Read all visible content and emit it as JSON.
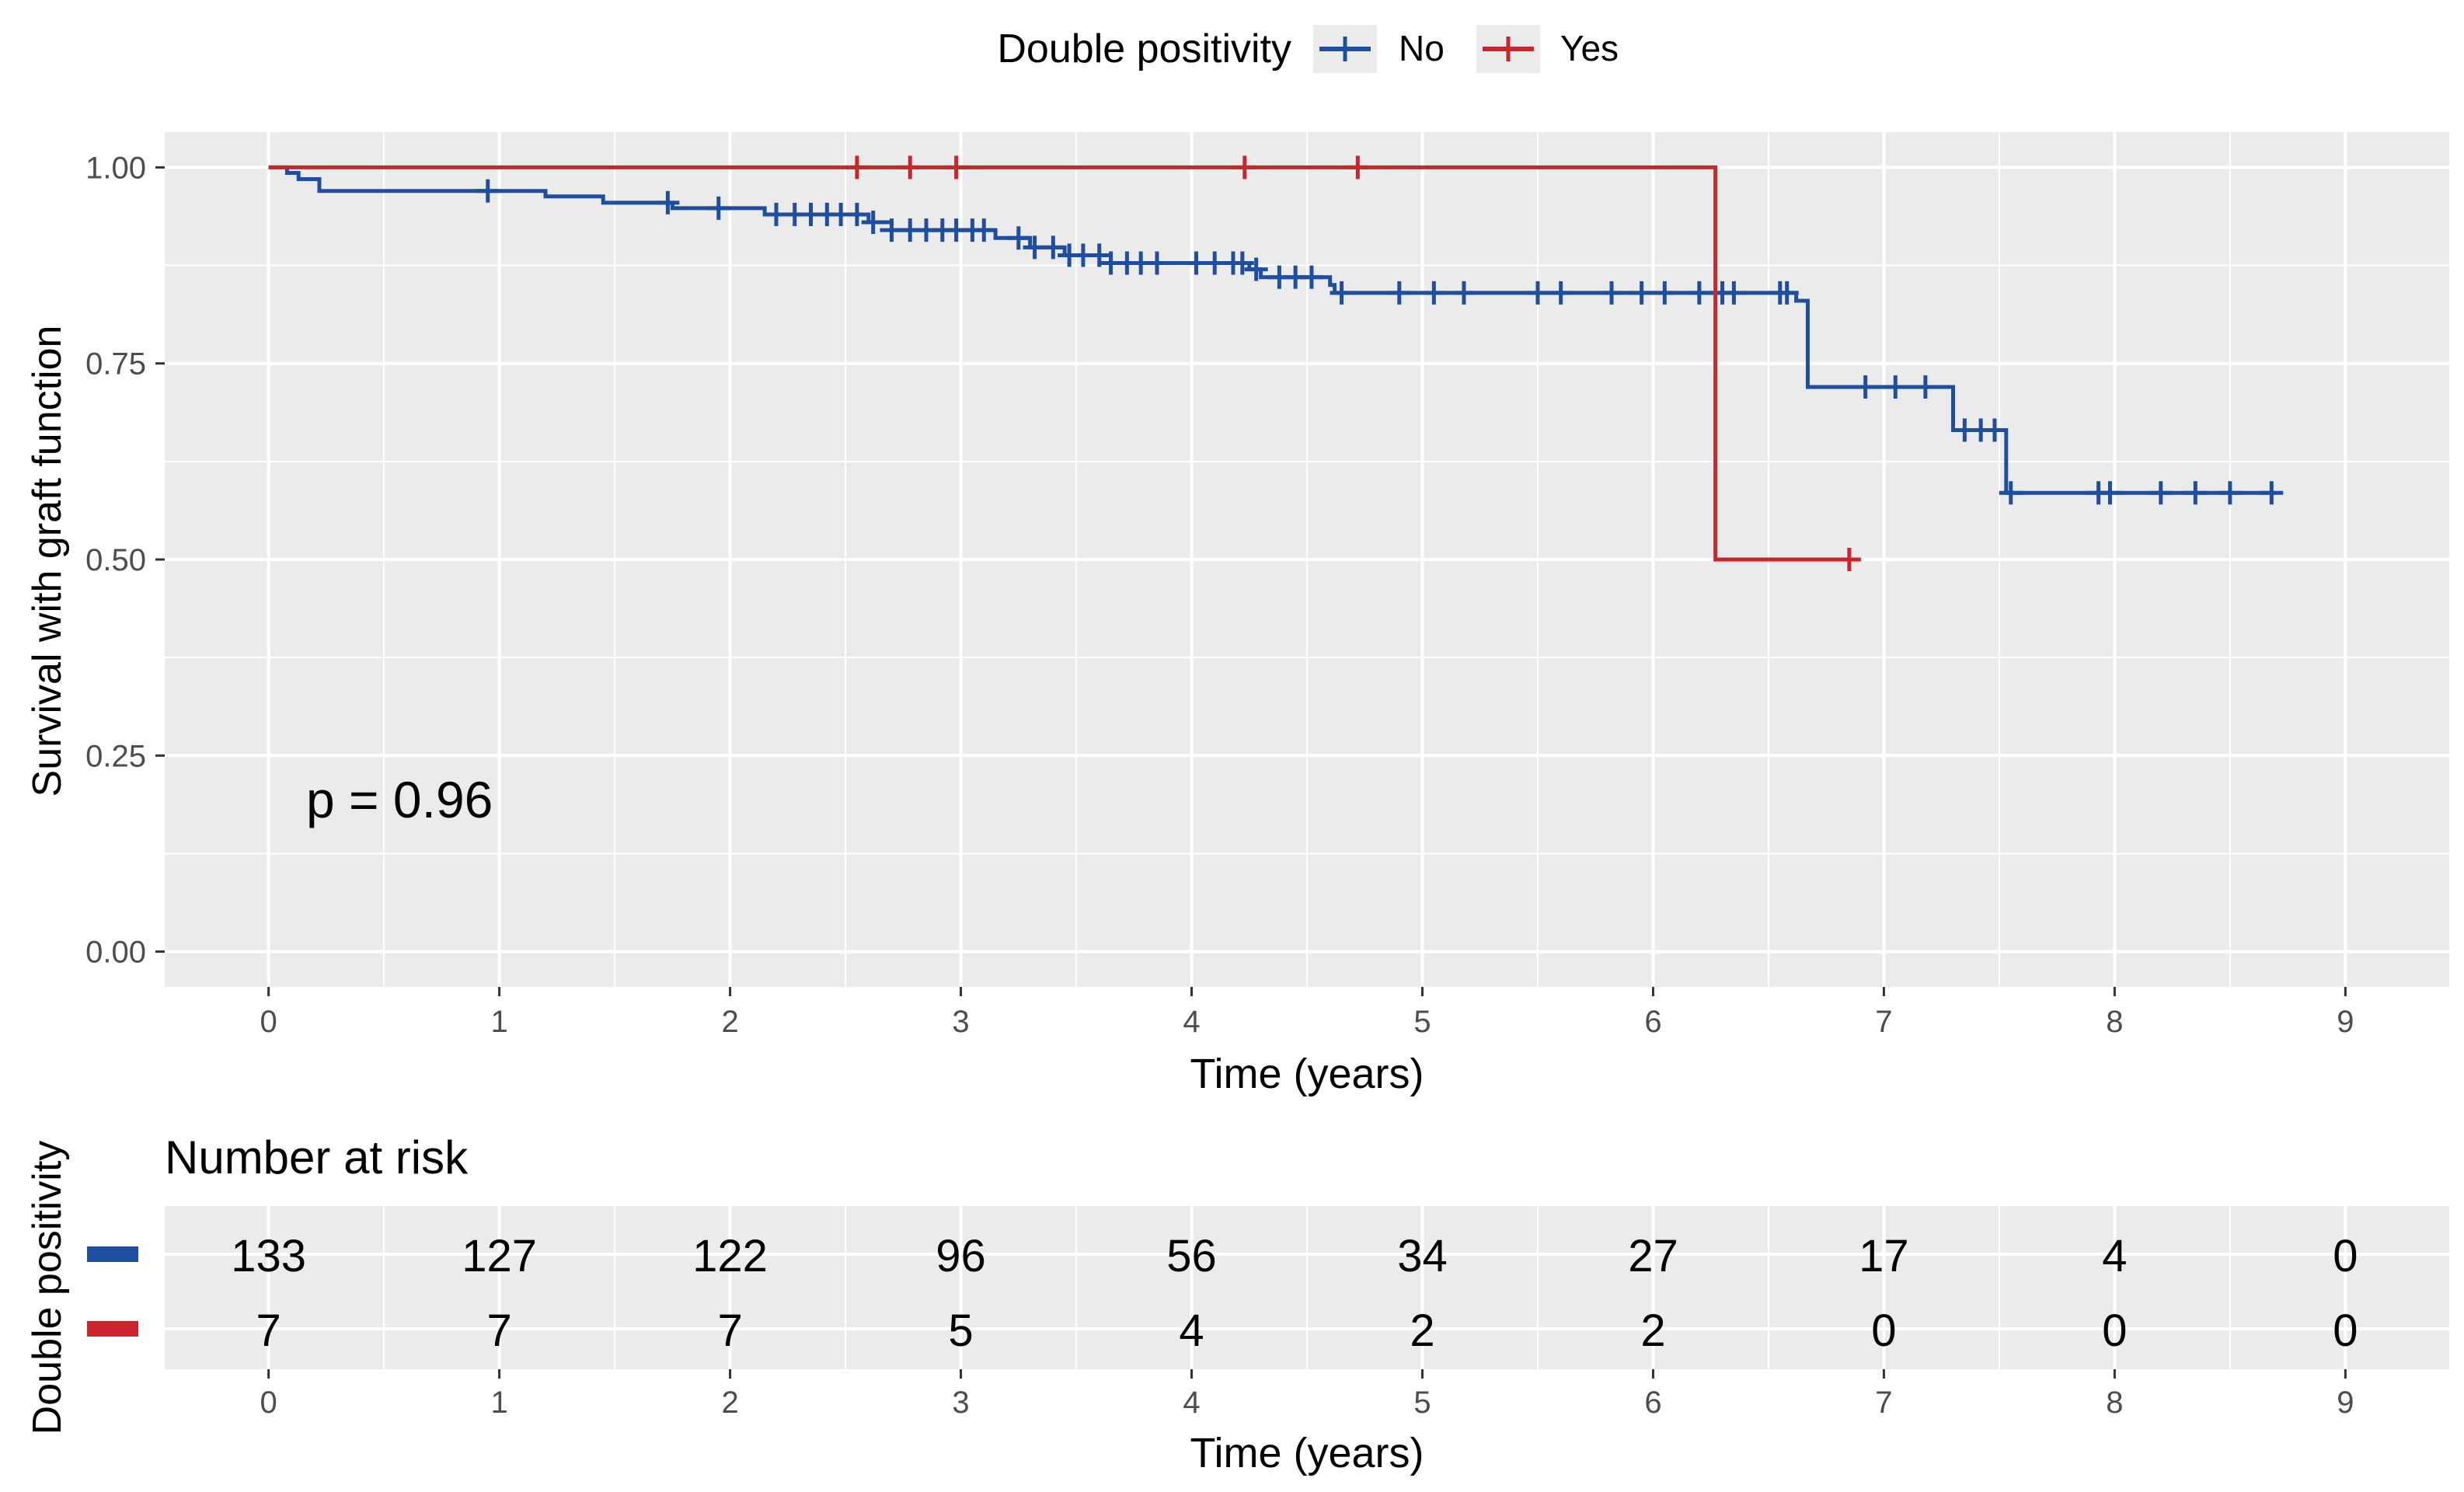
{
  "legend": {
    "title": "Double positivity",
    "items": [
      {
        "label": "No",
        "color": "#1F4E9E"
      },
      {
        "label": "Yes",
        "color": "#C9252C"
      }
    ]
  },
  "chart_data": [
    {
      "type": "line",
      "subtype": "kaplan-meier",
      "ylabel": "Survival with graft function",
      "xlabel": "Time (years)",
      "xlim": [
        -0.45,
        9.45
      ],
      "ylim": [
        -0.045,
        1.045
      ],
      "x_ticks": [
        "0",
        "1",
        "2",
        "3",
        "4",
        "5",
        "6",
        "7",
        "8",
        "9"
      ],
      "y_ticks": [
        "0.00",
        "0.25",
        "0.50",
        "0.75",
        "1.00"
      ],
      "grid": true,
      "legend_position": "top",
      "annotation": "p = 0.96",
      "series": [
        {
          "name": "No",
          "color": "#1F4E9E",
          "steps": [
            [
              0,
              1.0
            ],
            [
              0.08,
              0.993
            ],
            [
              0.13,
              0.985
            ],
            [
              0.22,
              0.97
            ],
            [
              1.2,
              0.963
            ],
            [
              1.45,
              0.955
            ],
            [
              1.75,
              0.948
            ],
            [
              2.15,
              0.94
            ],
            [
              2.6,
              0.93
            ],
            [
              2.7,
              0.92
            ],
            [
              3.15,
              0.91
            ],
            [
              3.3,
              0.898
            ],
            [
              3.45,
              0.888
            ],
            [
              3.65,
              0.878
            ],
            [
              4.25,
              0.87
            ],
            [
              4.3,
              0.86
            ],
            [
              4.6,
              0.85
            ],
            [
              4.62,
              0.84
            ],
            [
              6.62,
              0.83
            ],
            [
              6.67,
              0.72
            ],
            [
              7.3,
              0.665
            ],
            [
              7.53,
              0.585
            ],
            [
              8.7,
              0.585
            ]
          ],
          "censor_x": [
            0.95,
            1.73,
            1.95,
            2.2,
            2.28,
            2.35,
            2.42,
            2.48,
            2.55,
            2.62,
            2.7,
            2.78,
            2.85,
            2.92,
            2.98,
            3.05,
            3.1,
            3.25,
            3.32,
            3.4,
            3.47,
            3.53,
            3.6,
            3.65,
            3.72,
            3.78,
            3.85,
            4.02,
            4.1,
            4.18,
            4.22,
            4.28,
            4.38,
            4.45,
            4.52,
            4.65,
            4.9,
            5.05,
            5.18,
            5.5,
            5.6,
            5.82,
            5.95,
            6.05,
            6.2,
            6.3,
            6.35,
            6.55,
            6.58,
            6.92,
            7.05,
            7.18,
            7.35,
            7.42,
            7.48,
            7.55,
            7.93,
            7.98,
            8.2,
            8.35,
            8.5,
            8.68
          ]
        },
        {
          "name": "Yes",
          "color": "#C9252C",
          "steps": [
            [
              0,
              1.0
            ],
            [
              6.27,
              0.5
            ],
            [
              6.85,
              0.5
            ]
          ],
          "censor_x": [
            2.55,
            2.78,
            2.98,
            4.23,
            4.72,
            6.85
          ]
        }
      ]
    },
    {
      "type": "table",
      "title": "Number at risk",
      "row_axis_label": "Double positivity",
      "xlabel": "Time (years)",
      "x_ticks": [
        "0",
        "1",
        "2",
        "3",
        "4",
        "5",
        "6",
        "7",
        "8",
        "9"
      ],
      "rows": [
        {
          "group": "No",
          "color": "#1F4E9E",
          "values": [
            "133",
            "127",
            "122",
            "96",
            "56",
            "34",
            "27",
            "17",
            "4",
            "0"
          ]
        },
        {
          "group": "Yes",
          "color": "#C9252C",
          "values": [
            "7",
            "7",
            "7",
            "5",
            "4",
            "2",
            "2",
            "0",
            "0",
            "0"
          ]
        }
      ]
    }
  ]
}
